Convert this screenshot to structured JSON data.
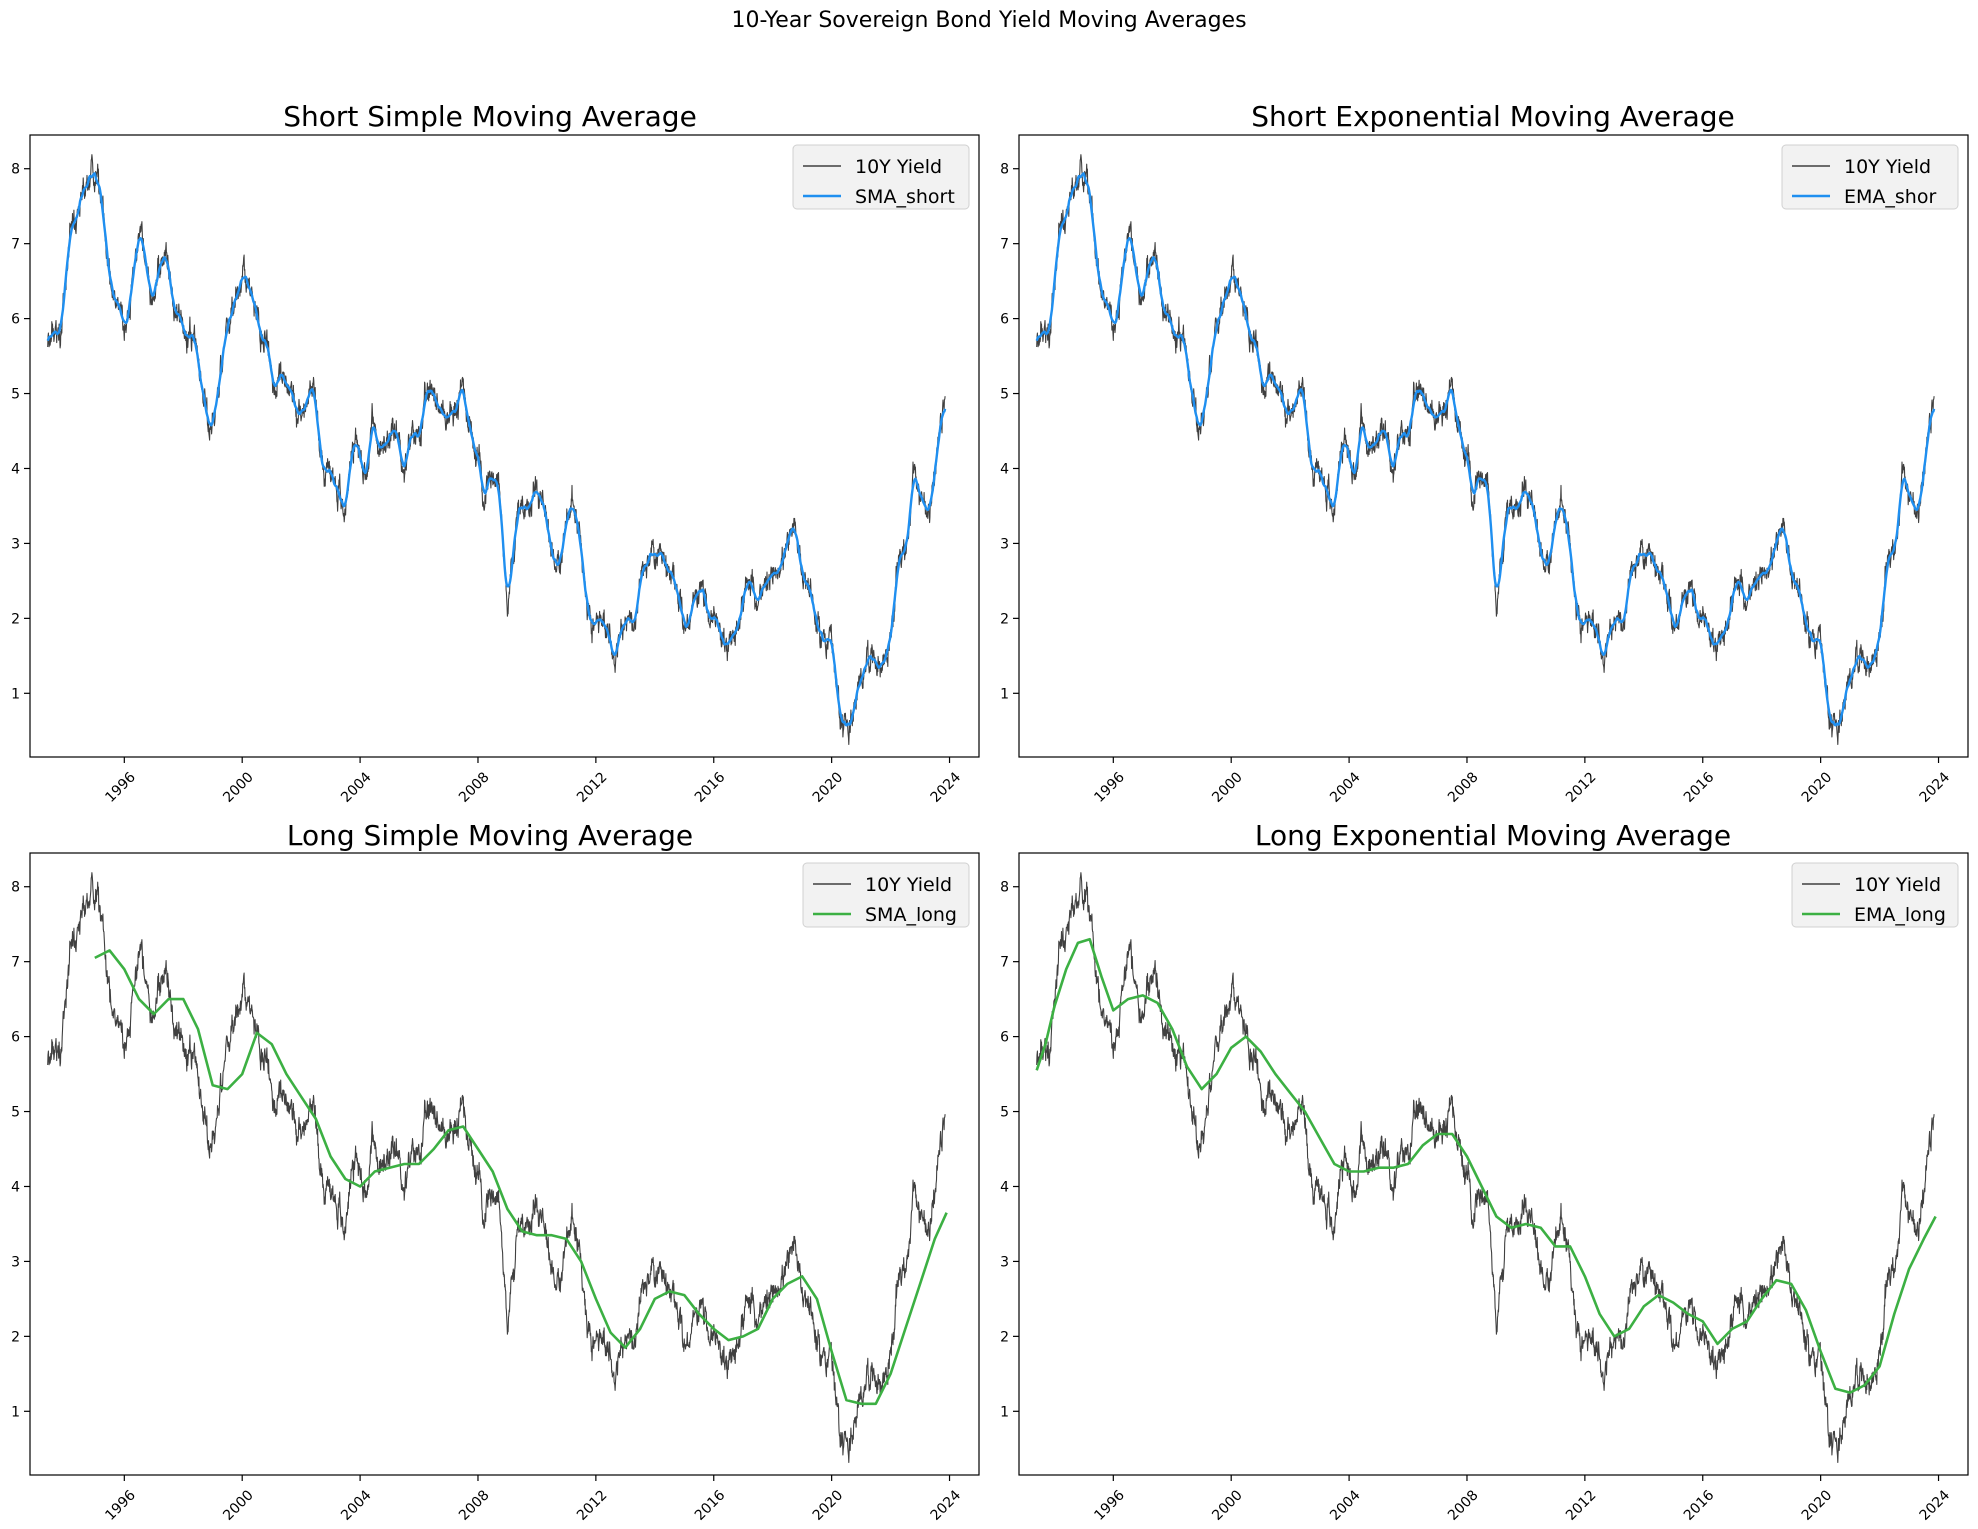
{
  "figure": {
    "suptitle": "10-Year Sovereign Bond Yield Moving Averages"
  },
  "colors": {
    "yield": "#404040",
    "short": "#1f8ff0",
    "long": "#3cb043"
  },
  "chart_data": [
    {
      "type": "line",
      "title": "Short Simple Moving Average",
      "xlabel": "",
      "ylabel": "",
      "x_ticks": [
        "1996",
        "2000",
        "2004",
        "2008",
        "2012",
        "2016",
        "2020",
        "2024"
      ],
      "y_ticks": [
        "1",
        "2",
        "3",
        "4",
        "5",
        "6",
        "7",
        "8"
      ],
      "xlim": [
        1992.8,
        2025.0
      ],
      "ylim": [
        0.15,
        8.45
      ],
      "legend": "top-right",
      "series": [
        {
          "name": "10Y Yield",
          "role": "yield",
          "color": "#404040"
        },
        {
          "name": "SMA_short",
          "role": "short",
          "color": "#1f8ff0"
        }
      ]
    },
    {
      "type": "line",
      "title": "Short Exponential Moving Average",
      "xlabel": "",
      "ylabel": "",
      "x_ticks": [
        "1996",
        "2000",
        "2004",
        "2008",
        "2012",
        "2016",
        "2020",
        "2024"
      ],
      "y_ticks": [
        "1",
        "2",
        "3",
        "4",
        "5",
        "6",
        "7",
        "8"
      ],
      "xlim": [
        1992.8,
        2025.0
      ],
      "ylim": [
        0.15,
        8.45
      ],
      "legend": "top-right",
      "series": [
        {
          "name": "10Y Yield",
          "role": "yield",
          "color": "#404040"
        },
        {
          "name": "EMA_shor",
          "role": "short",
          "color": "#1f8ff0"
        }
      ]
    },
    {
      "type": "line",
      "title": "Long Simple Moving Average",
      "xlabel": "",
      "ylabel": "",
      "x_ticks": [
        "1996",
        "2000",
        "2004",
        "2008",
        "2012",
        "2016",
        "2020",
        "2024"
      ],
      "y_ticks": [
        "1",
        "2",
        "3",
        "4",
        "5",
        "6",
        "7",
        "8"
      ],
      "xlim": [
        1992.8,
        2025.0
      ],
      "ylim": [
        0.15,
        8.45
      ],
      "legend": "top-right",
      "series": [
        {
          "name": "10Y Yield",
          "role": "yield",
          "color": "#404040"
        },
        {
          "name": "SMA_long",
          "role": "long",
          "color": "#3cb043",
          "x": [
            1995.0,
            1995.5,
            1996.0,
            1996.5,
            1997.0,
            1997.5,
            1998.0,
            1998.5,
            1999.0,
            1999.5,
            2000.0,
            2000.5,
            2001.0,
            2001.5,
            2002.0,
            2002.5,
            2003.0,
            2003.5,
            2004.0,
            2004.5,
            2005.0,
            2005.5,
            2006.0,
            2006.5,
            2007.0,
            2007.5,
            2008.0,
            2008.5,
            2009.0,
            2009.5,
            2010.0,
            2010.5,
            2011.0,
            2011.5,
            2012.0,
            2012.5,
            2013.0,
            2013.5,
            2014.0,
            2014.5,
            2015.0,
            2015.5,
            2016.0,
            2016.5,
            2017.0,
            2017.5,
            2018.0,
            2018.5,
            2019.0,
            2019.5,
            2020.0,
            2020.5,
            2021.0,
            2021.5,
            2022.0,
            2022.5,
            2023.0,
            2023.5,
            2023.9
          ],
          "y": [
            7.05,
            7.15,
            6.9,
            6.5,
            6.3,
            6.5,
            6.5,
            6.1,
            5.35,
            5.3,
            5.5,
            6.05,
            5.9,
            5.5,
            5.2,
            4.9,
            4.4,
            4.1,
            4.0,
            4.2,
            4.25,
            4.3,
            4.3,
            4.5,
            4.75,
            4.8,
            4.5,
            4.2,
            3.7,
            3.4,
            3.35,
            3.35,
            3.3,
            3.0,
            2.5,
            2.05,
            1.85,
            2.1,
            2.5,
            2.6,
            2.55,
            2.3,
            2.1,
            1.95,
            2.0,
            2.1,
            2.5,
            2.7,
            2.8,
            2.5,
            1.8,
            1.15,
            1.1,
            1.1,
            1.5,
            2.1,
            2.7,
            3.3,
            3.65
          ]
        }
      ]
    },
    {
      "type": "line",
      "title": "Long Exponential Moving Average",
      "xlabel": "",
      "ylabel": "",
      "x_ticks": [
        "1996",
        "2000",
        "2004",
        "2008",
        "2012",
        "2016",
        "2020",
        "2024"
      ],
      "y_ticks": [
        "1",
        "2",
        "3",
        "4",
        "5",
        "6",
        "7",
        "8"
      ],
      "xlim": [
        1992.8,
        2025.0
      ],
      "ylim": [
        0.15,
        8.45
      ],
      "legend": "top-right",
      "series": [
        {
          "name": "10Y Yield",
          "role": "yield",
          "color": "#404040"
        },
        {
          "name": "EMA_long",
          "role": "long",
          "color": "#3cb043",
          "x": [
            1993.4,
            1993.7,
            1994.0,
            1994.4,
            1994.8,
            1995.2,
            1995.6,
            1996.0,
            1996.5,
            1997.0,
            1997.5,
            1998.0,
            1998.5,
            1999.0,
            1999.5,
            2000.0,
            2000.5,
            2001.0,
            2001.5,
            2002.0,
            2002.5,
            2003.0,
            2003.5,
            2004.0,
            2004.5,
            2005.0,
            2005.5,
            2006.0,
            2006.5,
            2007.0,
            2007.5,
            2008.0,
            2008.5,
            2009.0,
            2009.5,
            2010.0,
            2010.5,
            2011.0,
            2011.5,
            2012.0,
            2012.5,
            2013.0,
            2013.5,
            2014.0,
            2014.5,
            2015.0,
            2015.5,
            2016.0,
            2016.5,
            2017.0,
            2017.5,
            2018.0,
            2018.5,
            2019.0,
            2019.5,
            2020.0,
            2020.5,
            2021.0,
            2021.5,
            2022.0,
            2022.5,
            2023.0,
            2023.5,
            2023.9
          ],
          "y": [
            5.55,
            5.9,
            6.4,
            6.9,
            7.25,
            7.3,
            6.8,
            6.35,
            6.5,
            6.55,
            6.45,
            6.1,
            5.6,
            5.3,
            5.5,
            5.85,
            6.0,
            5.8,
            5.5,
            5.25,
            5.0,
            4.65,
            4.3,
            4.2,
            4.2,
            4.25,
            4.25,
            4.3,
            4.55,
            4.7,
            4.7,
            4.4,
            4.0,
            3.6,
            3.45,
            3.5,
            3.45,
            3.2,
            3.2,
            2.8,
            2.3,
            2.0,
            2.1,
            2.4,
            2.55,
            2.45,
            2.3,
            2.2,
            1.9,
            2.1,
            2.2,
            2.5,
            2.75,
            2.7,
            2.35,
            1.8,
            1.3,
            1.25,
            1.35,
            1.6,
            2.3,
            2.9,
            3.3,
            3.6
          ]
        }
      ]
    }
  ]
}
